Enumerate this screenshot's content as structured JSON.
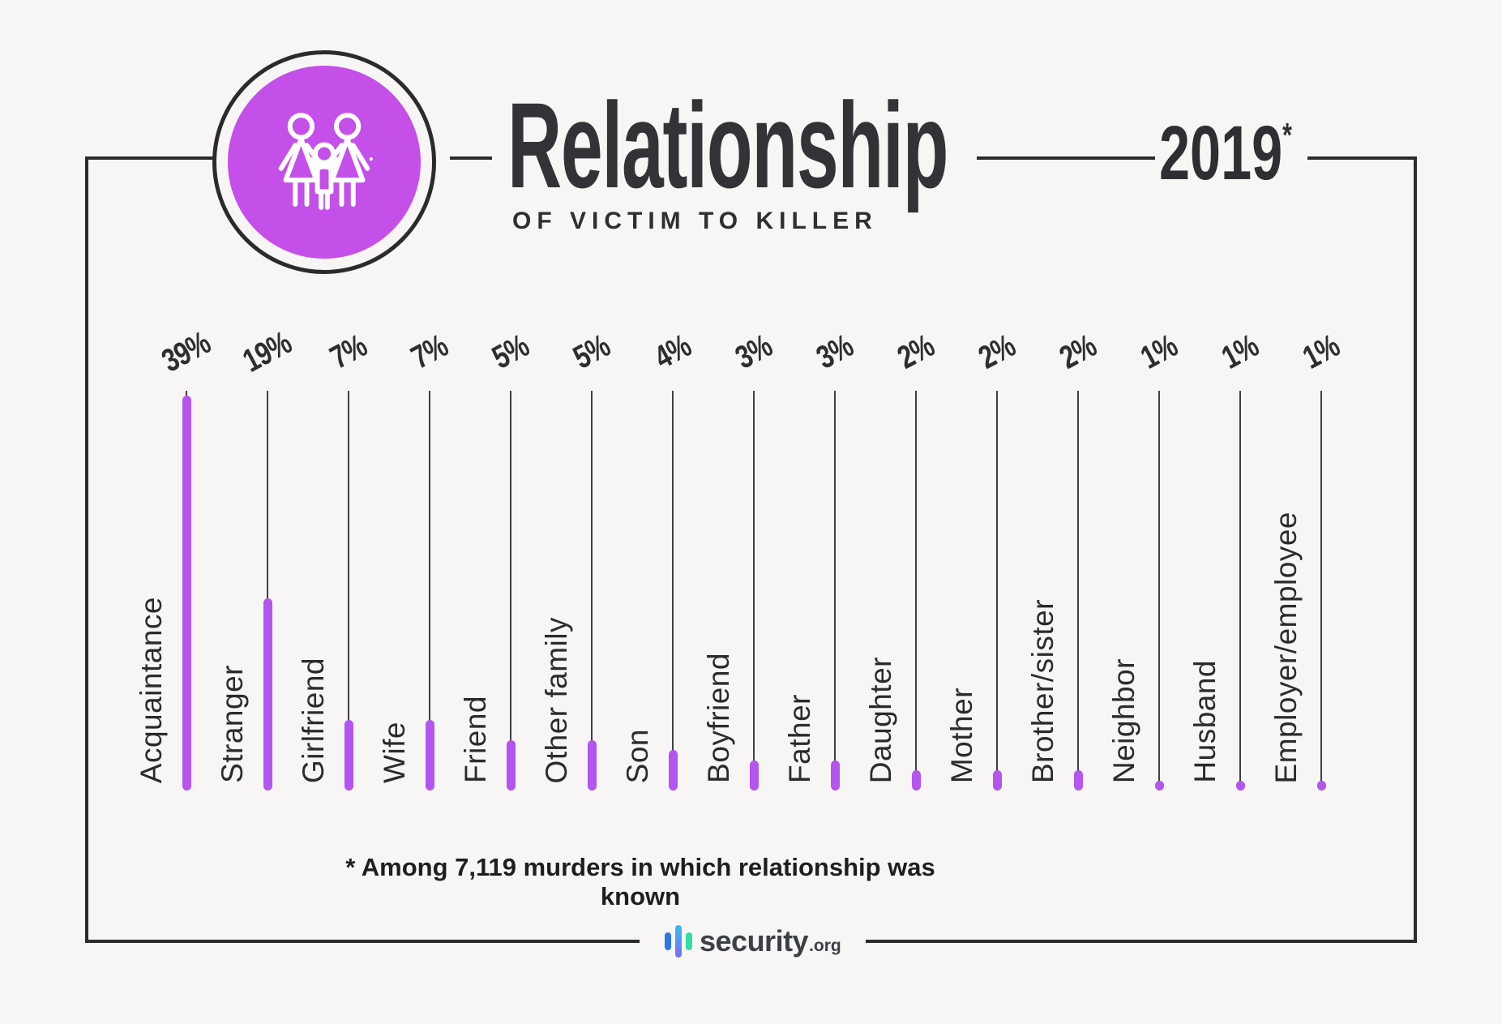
{
  "header": {
    "title": "Relationship",
    "subtitle": "OF VICTIM TO KILLER",
    "year": "2019",
    "year_asterisk": "*"
  },
  "badge": {
    "icon": "family-icon"
  },
  "chart_data": {
    "type": "bar",
    "title": "Relationship of victim to killer, 2019",
    "orientation": "vertical-lollipop",
    "unit": "%",
    "ylim": [
      0,
      40
    ],
    "categories": [
      "Acquaintance",
      "Stranger",
      "Girlfriend",
      "Wife",
      "Friend",
      "Other family",
      "Son",
      "Boyfriend",
      "Father",
      "Daughter",
      "Mother",
      "Brother/sister",
      "Neighbor",
      "Husband",
      "Employer/employee"
    ],
    "values": [
      39,
      19,
      7,
      7,
      5,
      5,
      4,
      3,
      3,
      2,
      2,
      2,
      1,
      1,
      1
    ],
    "value_labels": [
      "39%",
      "19%",
      "7%",
      "7%",
      "5%",
      "5%",
      "4%",
      "3%",
      "3%",
      "2%",
      "2%",
      "2%",
      "1%",
      "1%",
      "1%"
    ],
    "bar_color": "#b455ef",
    "stem_color": "#3f3f43",
    "grid": false,
    "legend": false
  },
  "footnote": "* Among 7,119 murders in which relationship was known",
  "logo": {
    "name": "security",
    "tld": ".org"
  },
  "colors": {
    "background": "#f7f6f4",
    "frame": "#2b2b2e",
    "badge_fill": "#c44fe9",
    "bar_purple": "#b455ef",
    "logo_blue": "#2b76e6",
    "logo_purple": "#7d68f2",
    "logo_green": "#30dfa4",
    "text_dark": "#2f2f33"
  }
}
